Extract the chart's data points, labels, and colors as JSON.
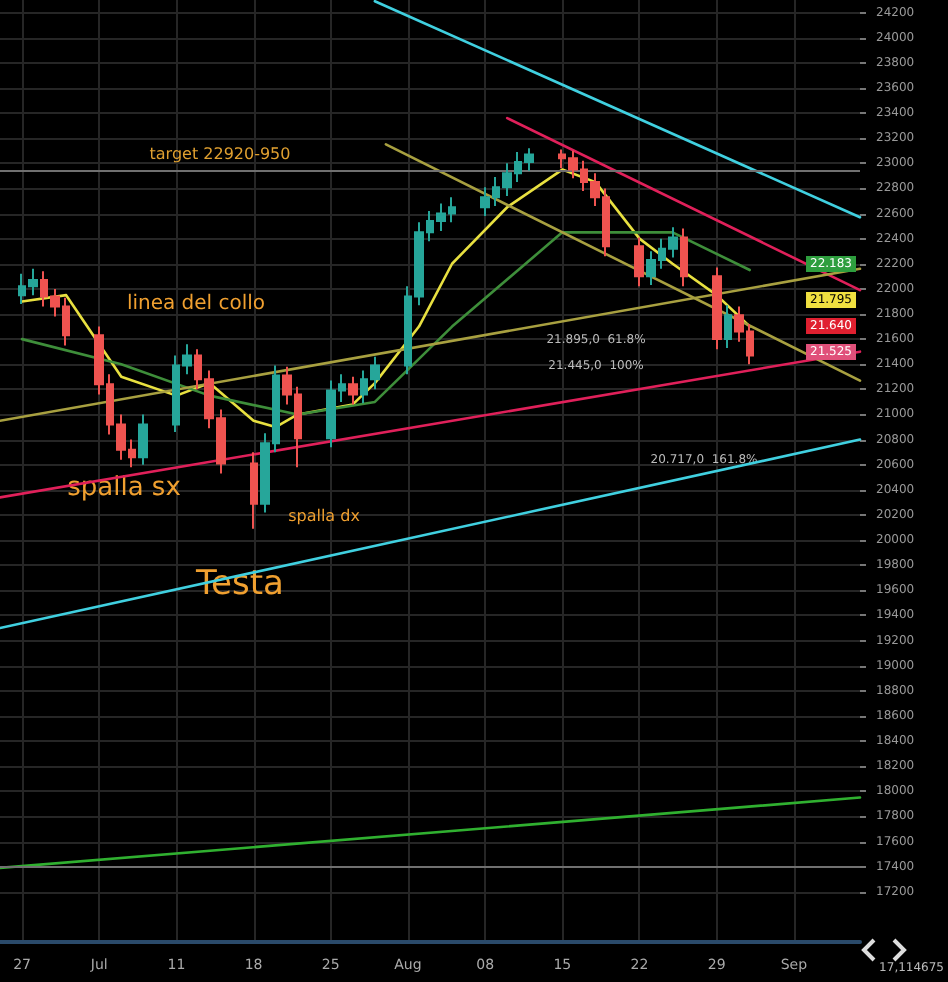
{
  "chart_data": {
    "type": "candlestick",
    "x": [
      "--06-27",
      "--06-28",
      "--06-29",
      "--06-30",
      "--07-01",
      "--07-04",
      "--07-05",
      "--07-06",
      "--07-07",
      "--07-08",
      "--07-11",
      "--07-12",
      "--07-13",
      "--07-14",
      "--07-15",
      "--07-18",
      "--07-19",
      "--07-20",
      "--07-21",
      "--07-22",
      "--07-25",
      "--07-26",
      "--07-27",
      "--07-28",
      "--07-29",
      "--08-01",
      "--08-02",
      "--08-03",
      "--08-04",
      "--08-05",
      "--08-08",
      "--08-09",
      "--08-10",
      "--08-11",
      "--08-12",
      "--08-15",
      "--08-16",
      "--08-17",
      "--08-18",
      "--08-19",
      "--08-22",
      "--08-23",
      "--08-24",
      "--08-25",
      "--08-26",
      "--08-29",
      "--08-30",
      "--08-31",
      "--09-01"
    ],
    "ohlc": [
      [
        21950,
        22120,
        21880,
        22020
      ],
      [
        22020,
        22160,
        21950,
        22070
      ],
      [
        22070,
        22140,
        21860,
        21940
      ],
      [
        21940,
        22000,
        21780,
        21860
      ],
      [
        21860,
        21930,
        21550,
        21630
      ],
      [
        21630,
        21700,
        21160,
        21240
      ],
      [
        21240,
        21320,
        20840,
        20920
      ],
      [
        20920,
        21000,
        20640,
        20720
      ],
      [
        20720,
        20800,
        20580,
        20660
      ],
      [
        20660,
        21000,
        20600,
        20920
      ],
      [
        20920,
        21470,
        20860,
        21390
      ],
      [
        21390,
        21560,
        21320,
        21470
      ],
      [
        21470,
        21520,
        21200,
        21280
      ],
      [
        21280,
        21350,
        20890,
        20970
      ],
      [
        20970,
        21040,
        20530,
        20610
      ],
      [
        20610,
        20700,
        20090,
        20290
      ],
      [
        20290,
        20850,
        20220,
        20770
      ],
      [
        20770,
        21390,
        20700,
        21310
      ],
      [
        21310,
        21380,
        21080,
        21160
      ],
      [
        21160,
        21220,
        20580,
        20810
      ],
      [
        20810,
        21270,
        20740,
        21190
      ],
      [
        21190,
        21320,
        21100,
        21240
      ],
      [
        21240,
        21300,
        21080,
        21160
      ],
      [
        21160,
        21350,
        21090,
        21280
      ],
      [
        21280,
        21460,
        21200,
        21390
      ],
      [
        21390,
        22020,
        21320,
        21940
      ],
      [
        21940,
        22530,
        21870,
        22450
      ],
      [
        22450,
        22620,
        22380,
        22540
      ],
      [
        22540,
        22680,
        22460,
        22600
      ],
      [
        22600,
        22730,
        22530,
        22650
      ],
      [
        22650,
        22810,
        22580,
        22730
      ],
      [
        22730,
        22890,
        22660,
        22810
      ],
      [
        22810,
        23000,
        22740,
        22920
      ],
      [
        22920,
        23090,
        22850,
        23010
      ],
      [
        23010,
        23120,
        22940,
        23070
      ],
      [
        23070,
        23110,
        22960,
        23040
      ],
      [
        23040,
        23100,
        22880,
        22950
      ],
      [
        22950,
        23020,
        22780,
        22850
      ],
      [
        22850,
        22920,
        22660,
        22730
      ],
      [
        22730,
        22800,
        22260,
        22340
      ],
      [
        22340,
        22410,
        22020,
        22100
      ],
      [
        22100,
        22300,
        22030,
        22230
      ],
      [
        22230,
        22400,
        22160,
        22320
      ],
      [
        22320,
        22490,
        22250,
        22410
      ],
      [
        22410,
        22480,
        22020,
        22100
      ],
      [
        22100,
        22170,
        21520,
        21600
      ],
      [
        21600,
        21870,
        21530,
        21790
      ],
      [
        21790,
        21860,
        21580,
        21660
      ],
      [
        21660,
        21720,
        21400,
        21470
      ]
    ],
    "series": [
      {
        "type": "line",
        "color": "#e8e040",
        "x": [
          "--06-27",
          "--07-01",
          "--07-06",
          "--07-11",
          "--07-14",
          "--07-18",
          "--07-20",
          "--07-22",
          "--07-27",
          "--07-29",
          "--08-02",
          "--08-05",
          "--08-10",
          "--08-15",
          "--08-18",
          "--08-22",
          "--08-25",
          "--08-29",
          "--09-01"
        ],
        "values": [
          21900,
          21950,
          21300,
          21150,
          21250,
          20950,
          20900,
          21000,
          21080,
          21250,
          21700,
          22200,
          22650,
          22950,
          22850,
          22400,
          22200,
          21950,
          21700
        ]
      },
      {
        "type": "line",
        "color": "#3e8e3a",
        "x": [
          "--06-27",
          "--07-06",
          "--07-14",
          "--07-22",
          "--07-29",
          "--08-05",
          "--08-15",
          "--08-25",
          "--09-01"
        ],
        "values": [
          21600,
          21400,
          21150,
          21000,
          21100,
          21700,
          22450,
          22450,
          22150
        ]
      },
      {
        "type": "line",
        "color": "#40d0e0",
        "x": [
          "--07-29",
          "--09-11"
        ],
        "values": [
          24290,
          22570
        ]
      },
      {
        "type": "line",
        "color": "#40d0e0",
        "x": [
          "--06-25",
          "--09-11"
        ],
        "values": [
          19300,
          20800
        ]
      },
      {
        "type": "line",
        "color": "#e0205a",
        "x": [
          "--08-10",
          "--09-11"
        ],
        "values": [
          23360,
          21990
        ]
      },
      {
        "type": "line",
        "color": "#e0205a",
        "x": [
          "--06-25",
          "--09-11"
        ],
        "values": [
          20340,
          21500
        ]
      },
      {
        "type": "line",
        "color": "#a8a040",
        "x": [
          "--06-25",
          "--09-11"
        ],
        "values": [
          20950,
          22160
        ]
      },
      {
        "type": "line",
        "color": "#a8a040",
        "x": [
          "--07-30",
          "--09-11"
        ],
        "values": [
          23150,
          21270
        ]
      },
      {
        "type": "line",
        "color": "#30b030",
        "x": [
          "--06-25",
          "--09-11"
        ],
        "values": [
          17390,
          17950
        ]
      }
    ],
    "xlim": [
      "--06-25",
      "--09-11"
    ],
    "xticks": [
      {
        "value": "--06-27",
        "label": "27"
      },
      {
        "value": "--07-04",
        "label": "Jul"
      },
      {
        "value": "--07-11",
        "label": "11"
      },
      {
        "value": "--07-18",
        "label": "18"
      },
      {
        "value": "--07-25",
        "label": "25"
      },
      {
        "value": "--08-01",
        "label": "Aug"
      },
      {
        "value": "--08-08",
        "label": "08"
      },
      {
        "value": "--08-15",
        "label": "15"
      },
      {
        "value": "--08-22",
        "label": "22"
      },
      {
        "value": "--08-29",
        "label": "29"
      },
      {
        "value": "--09-05",
        "label": "Sep"
      }
    ],
    "ylim": [
      16800,
      24300
    ],
    "yticks": [
      17200,
      17400,
      17600,
      17800,
      18000,
      18200,
      18400,
      18600,
      18800,
      19000,
      19200,
      19400,
      19600,
      19800,
      20000,
      20200,
      20400,
      20600,
      20800,
      21000,
      21200,
      21400,
      21600,
      21800,
      22000,
      22200,
      22400,
      22600,
      22800,
      23000,
      23200,
      23400,
      23600,
      23800,
      24000,
      24200
    ],
    "ref_lines": [
      {
        "axis": "y",
        "value": 22950,
        "color": "#707070"
      },
      {
        "axis": "y",
        "value": 17400,
        "color": "#707070"
      }
    ],
    "annotations": [
      "target 22920-950",
      "linea del collo",
      "spalla sx",
      "spalla dx",
      "Testa",
      "21.895,0  61.8%",
      "21.445,0  100%",
      "20.717,0  161.8%",
      "22.183",
      "21.795",
      "21.640",
      "21.525",
      "17,114675"
    ],
    "grid": true,
    "marker": "none",
    "line_style": "solid"
  }
}
